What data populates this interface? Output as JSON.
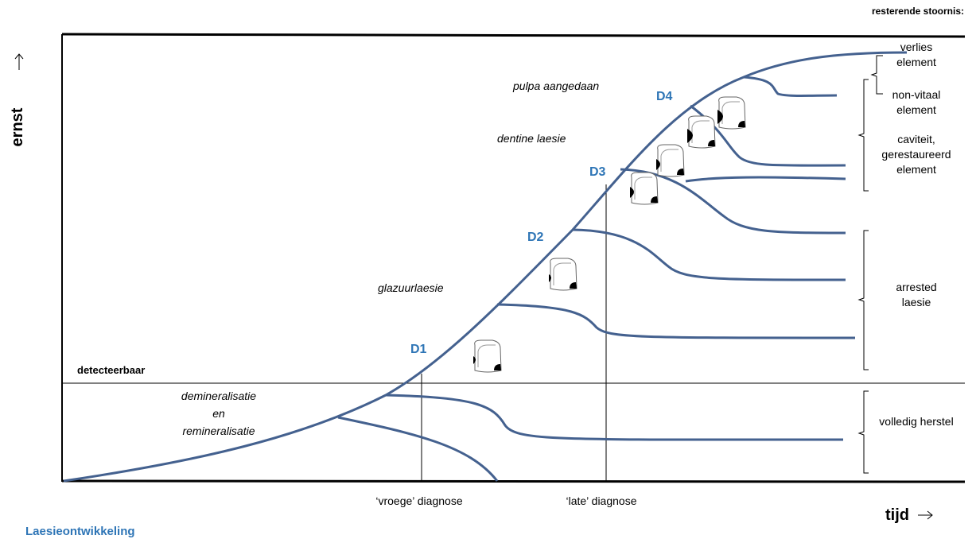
{
  "header": {
    "legend_title": "resterende stoornis:"
  },
  "axes": {
    "y_label": "ernst",
    "x_label": "tijd"
  },
  "threshold": "detecteerbaar",
  "phases": {
    "demineralisation": [
      "demineralisatie",
      "en",
      "remineralisatie"
    ],
    "enamel": "glazuurlaesie",
    "dentine": "dentine laesie",
    "pulp": "pulpa aangedaan"
  },
  "stages": [
    "D1",
    "D2",
    "D3",
    "D4"
  ],
  "outcomes": [
    [
      "verlies",
      "element"
    ],
    [
      "non-vitaal",
      "element"
    ],
    [
      "caviteit,",
      "gerestaureerd",
      "element"
    ],
    [
      "arrested",
      "laesie"
    ],
    [
      "volledig herstel"
    ]
  ],
  "diagnoses": [
    "‘vroege’ diagnose",
    "‘late’ diagnose"
  ],
  "footer": "Laesieontwikkeling"
}
